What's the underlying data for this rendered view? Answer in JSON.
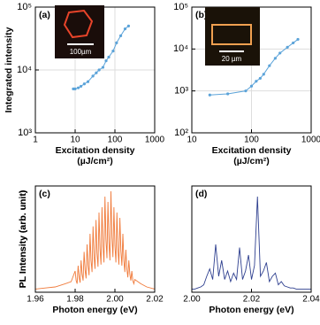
{
  "chart_data": [
    {
      "type": "line",
      "markers": true,
      "label": "(a)",
      "ylabel": "Integrated intensity",
      "xlabel": [
        "Excitation density",
        "(µJ/cm²)"
      ],
      "xlog": true,
      "ylog": true,
      "grid": true,
      "color": "#5ba3d9",
      "inset_label": "100µm",
      "x": [
        9,
        10,
        12,
        14,
        17,
        21,
        28,
        34,
        40,
        50,
        60,
        70,
        90,
        110,
        140,
        180,
        220
      ],
      "values": [
        5000,
        5000,
        5200,
        5500,
        6000,
        6500,
        8000,
        9000,
        10000,
        11000,
        14000,
        16000,
        20000,
        27000,
        35000,
        45000,
        50000
      ],
      "xlim": [
        1,
        1000
      ],
      "xticks": [
        1,
        10,
        100,
        1000
      ],
      "ylim": [
        1000,
        100000
      ],
      "yticks": [
        {
          "value": 1000,
          "label": "10³"
        },
        {
          "value": 10000,
          "label": "10⁴"
        },
        {
          "value": 100000,
          "label": "10⁵"
        }
      ]
    },
    {
      "type": "line",
      "markers": true,
      "label": "(b)",
      "xlabel": [
        "Excitation density",
        "(µJ/cm²)"
      ],
      "xlog": true,
      "ylog": true,
      "grid": true,
      "color": "#5ba3d9",
      "inset_label": "20 µm",
      "x": [
        20,
        40,
        80,
        100,
        120,
        140,
        160,
        200,
        250,
        300,
        400,
        500,
        600
      ],
      "values": [
        800,
        850,
        1000,
        1300,
        1700,
        2000,
        2500,
        4000,
        6000,
        8000,
        11000,
        14000,
        17000
      ],
      "xlim": [
        10,
        1000
      ],
      "xticks": [
        10,
        100,
        1000
      ],
      "ylim": [
        100,
        100000
      ],
      "yticks": [
        {
          "value": 100,
          "label": "10²"
        },
        {
          "value": 1000,
          "label": "10³"
        },
        {
          "value": 10000,
          "label": "10⁴"
        },
        {
          "value": 100000,
          "label": "10⁵"
        }
      ]
    },
    {
      "type": "line",
      "label": "(c)",
      "ylabel": "PL Intensity (arb. unit)",
      "xlabel": [
        "Photon energy (eV)"
      ],
      "color": "#f07a3a",
      "x": [
        1.96,
        1.965,
        1.97,
        1.975,
        1.978,
        1.98,
        1.9805,
        1.981,
        1.9815,
        1.982,
        1.9825,
        1.983,
        1.9835,
        1.984,
        1.9845,
        1.985,
        1.9855,
        1.986,
        1.9865,
        1.987,
        1.9875,
        1.988,
        1.9885,
        1.989,
        1.9895,
        1.99,
        1.9905,
        1.991,
        1.9915,
        1.992,
        1.9925,
        1.993,
        1.9935,
        1.994,
        1.9945,
        1.995,
        1.9955,
        1.996,
        1.9965,
        1.997,
        1.9975,
        1.998,
        1.9985,
        1.999,
        1.9995,
        2.0,
        2.0005,
        2.001,
        2.0015,
        2.002,
        2.0025,
        2.003,
        2.0035,
        2.004,
        2.0045,
        2.005,
        2.0055,
        2.006,
        2.0065,
        2.007,
        2.0075,
        2.008,
        2.0085,
        2.009,
        2.0095,
        2.01,
        2.013,
        2.016,
        2.02
      ],
      "values": [
        0.03,
        0.04,
        0.05,
        0.08,
        0.1,
        0.2,
        0.11,
        0.08,
        0.25,
        0.14,
        0.09,
        0.3,
        0.17,
        0.11,
        0.38,
        0.21,
        0.13,
        0.45,
        0.25,
        0.16,
        0.55,
        0.3,
        0.19,
        0.62,
        0.34,
        0.22,
        0.68,
        0.37,
        0.24,
        0.75,
        0.41,
        0.26,
        0.8,
        0.44,
        0.28,
        0.9,
        0.5,
        0.32,
        0.85,
        0.47,
        0.3,
        0.95,
        0.52,
        0.33,
        0.8,
        0.44,
        0.28,
        0.75,
        0.41,
        0.26,
        0.7,
        0.39,
        0.25,
        0.55,
        0.3,
        0.19,
        0.4,
        0.22,
        0.14,
        0.3,
        0.17,
        0.11,
        0.2,
        0.11,
        0.08,
        0.12,
        0.08,
        0.05,
        0.03
      ],
      "xlim": [
        1.96,
        2.02
      ],
      "xticks": [
        1.96,
        1.98,
        {
          "value": 2.0,
          "label": "2.00"
        },
        2.02
      ],
      "ylim": [
        0,
        1
      ],
      "yticks": []
    },
    {
      "type": "line",
      "label": "(d)",
      "ylabel": "PL Intensity (arb. unit)",
      "xlabel": [
        "Photon energy (eV)"
      ],
      "color": "#2e3f8f",
      "x": [
        2.0,
        2.001,
        2.002,
        2.003,
        2.004,
        2.005,
        2.006,
        2.007,
        2.008,
        2.009,
        2.01,
        2.011,
        2.012,
        2.013,
        2.014,
        2.015,
        2.016,
        2.017,
        2.018,
        2.019,
        2.02,
        2.021,
        2.022,
        2.023,
        2.024,
        2.025,
        2.026,
        2.027,
        2.028,
        2.029,
        2.03,
        2.031,
        2.032,
        2.033,
        2.034,
        2.035,
        2.036,
        2.037,
        2.038,
        2.039,
        2.04
      ],
      "values": [
        0.03,
        0.03,
        0.04,
        0.05,
        0.07,
        0.15,
        0.22,
        0.12,
        0.45,
        0.15,
        0.3,
        0.12,
        0.2,
        0.1,
        0.18,
        0.12,
        0.42,
        0.12,
        0.2,
        0.35,
        0.12,
        0.25,
        0.9,
        0.15,
        0.2,
        0.28,
        0.1,
        0.15,
        0.18,
        0.07,
        0.1,
        0.06,
        0.05,
        0.04,
        0.04,
        0.03,
        0.03,
        0.03,
        0.03,
        0.03,
        0.03
      ],
      "xlim": [
        2.0,
        2.04
      ],
      "xticks": [
        {
          "value": 2.0,
          "label": "2.00"
        },
        2.02,
        2.04
      ],
      "ylim": [
        0,
        1
      ],
      "yticks": []
    }
  ]
}
